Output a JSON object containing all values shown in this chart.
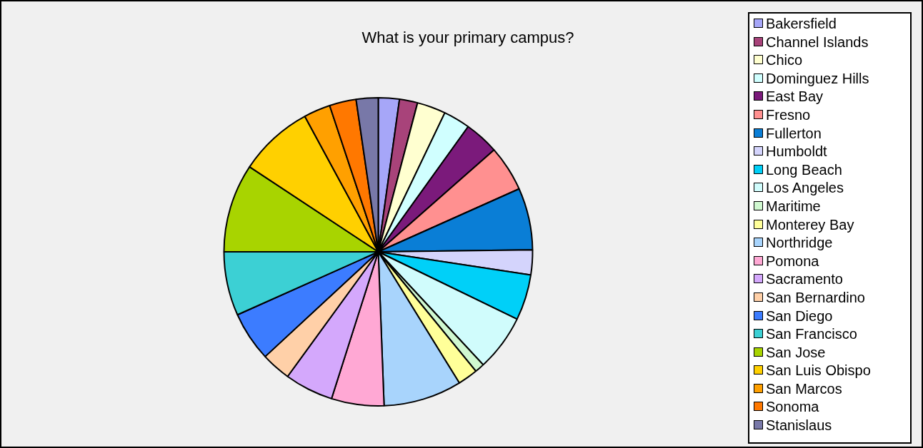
{
  "chart_data": {
    "type": "pie",
    "title": "What is your primary campus?",
    "categories": [
      "Bakersfield",
      "Channel Islands",
      "Chico",
      "Dominguez Hills",
      "East Bay",
      "Fresno",
      "Fullerton",
      "Humboldt",
      "Long Beach",
      "Los Angeles",
      "Maritime",
      "Monterey Bay",
      "Northridge",
      "Pomona",
      "Sacramento",
      "San Bernardino",
      "San Diego",
      "San Francisco",
      "San Jose",
      "San Luis Obispo",
      "San Marcos",
      "Sonoma",
      "Stanislaus"
    ],
    "values": [
      2.2,
      1.9,
      3.0,
      2.8,
      3.6,
      4.8,
      6.5,
      2.6,
      4.8,
      5.9,
      1.0,
      2.1,
      8.2,
      5.5,
      5.1,
      3.1,
      5.2,
      6.7,
      9.3,
      7.8,
      2.8,
      2.8,
      2.3
    ],
    "colors": [
      "#a6a6f8",
      "#a8437a",
      "#ffffd0",
      "#d0ffff",
      "#7b1a7b",
      "#ff9090",
      "#0a7ed6",
      "#d4d4fc",
      "#00d0f8",
      "#d0fcfc",
      "#d0f8d0",
      "#ffff99",
      "#a8d4fc",
      "#ffa8d4",
      "#d4a8fc",
      "#ffd0a8",
      "#3c7cff",
      "#3cd0d4",
      "#a8d400",
      "#ffd000",
      "#ffa000",
      "#ff7800",
      "#7878a8"
    ],
    "legend": "right"
  }
}
